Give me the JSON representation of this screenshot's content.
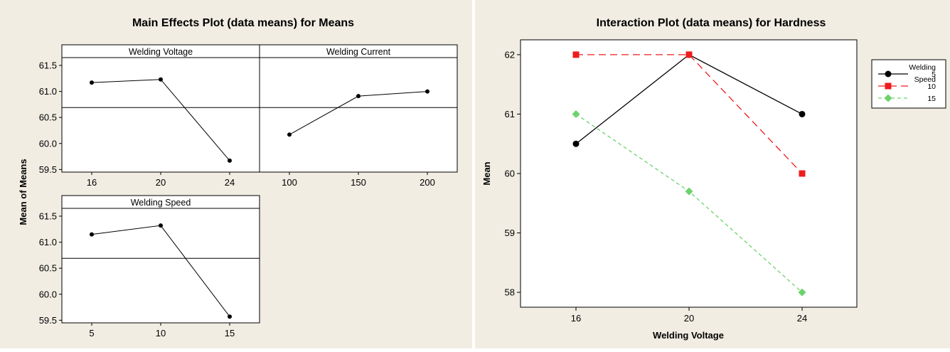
{
  "chart_data": [
    {
      "type": "line",
      "title": "Main Effects Plot (data means) for Means",
      "ylabel": "Mean of Means",
      "ylim": [
        59.45,
        61.65
      ],
      "yticks": [
        "59.5",
        "60.0",
        "60.5",
        "61.0",
        "61.5"
      ],
      "grand_mean": 60.69,
      "panels": [
        {
          "title": "Welding Voltage",
          "x": [
            "16",
            "20",
            "24"
          ],
          "values": [
            61.17,
            61.23,
            59.67
          ]
        },
        {
          "title": "Welding Current",
          "x": [
            "100",
            "150",
            "200"
          ],
          "values": [
            60.17,
            60.91,
            61.0
          ]
        },
        {
          "title": "Welding Speed",
          "x": [
            "5",
            "10",
            "15"
          ],
          "values": [
            61.15,
            61.32,
            59.57
          ]
        }
      ],
      "grid": false,
      "colors": {
        "line": "#000000",
        "background": "#f1ede3",
        "plot": "#ffffff"
      }
    },
    {
      "type": "line",
      "title": "Interaction Plot (data means) for Hardness",
      "xlabel": "Welding Voltage",
      "ylabel": "Mean",
      "categories": [
        "16",
        "20",
        "24"
      ],
      "ylim": [
        57.75,
        62.25
      ],
      "yticks": [
        "58",
        "59",
        "60",
        "61",
        "62"
      ],
      "legend": {
        "title_line1": "Welding",
        "title_line2": "Speed",
        "placement": "right"
      },
      "series": [
        {
          "name": "5",
          "values": [
            60.5,
            62.0,
            61.0
          ],
          "color": "#000000",
          "marker": "circle",
          "dash": "solid"
        },
        {
          "name": "10",
          "values": [
            62.0,
            62.0,
            60.0
          ],
          "color": "#ee1c1c",
          "marker": "square",
          "dash": "long-dash"
        },
        {
          "name": "15",
          "values": [
            61.0,
            59.7,
            58.0
          ],
          "color": "#6cd36c",
          "marker": "diamond",
          "dash": "short-dash"
        }
      ],
      "grid": false,
      "colors": {
        "background": "#f1ede3",
        "plot": "#ffffff"
      }
    }
  ]
}
